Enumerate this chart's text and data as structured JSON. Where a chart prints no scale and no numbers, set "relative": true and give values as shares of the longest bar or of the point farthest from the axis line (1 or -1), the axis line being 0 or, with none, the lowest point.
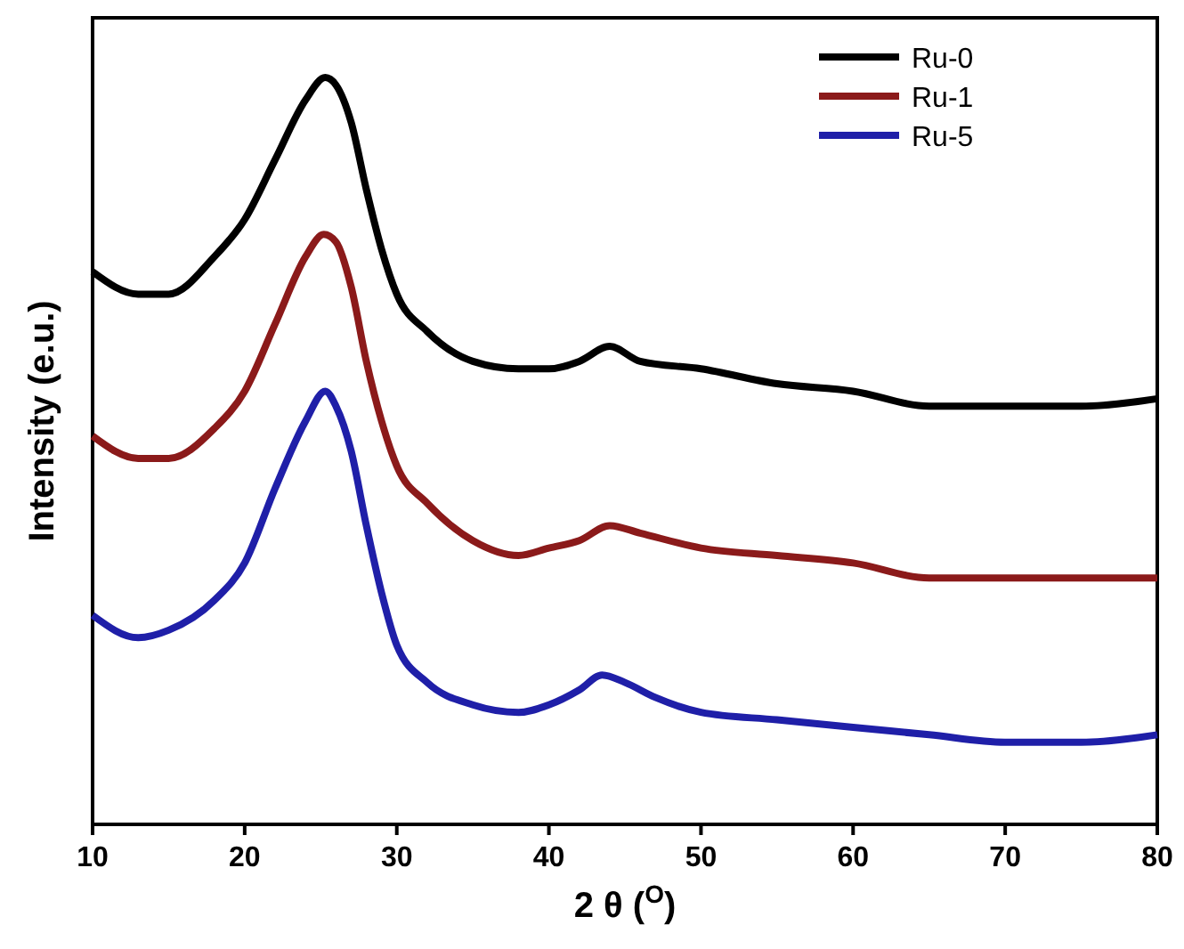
{
  "chart_data": {
    "type": "line",
    "relative": true,
    "xlabel": "2 θ ($^{O}$)",
    "ylabel": "Intensity (e.u.)",
    "xlim": [
      10,
      80
    ],
    "xticks": [
      10,
      20,
      30,
      40,
      50,
      60,
      70,
      80
    ],
    "tick_labels": "x",
    "legend": "top right",
    "line_style": "solid",
    "marker": "none",
    "series": [
      {
        "name": "Ru-0",
        "color": "#000000",
        "x": [
          10,
          13,
          15,
          18,
          20,
          22,
          24,
          25.3,
          26,
          27,
          28,
          29,
          30,
          32,
          35,
          38,
          40,
          42,
          44,
          46,
          50,
          55,
          60,
          65,
          70,
          75,
          80
        ],
        "values": [
          0.74,
          0.71,
          0.71,
          0.76,
          0.81,
          0.89,
          0.97,
          1,
          0.99,
          0.94,
          0.85,
          0.77,
          0.71,
          0.66,
          0.62,
          0.61,
          0.61,
          0.62,
          0.64,
          0.62,
          0.61,
          0.59,
          0.58,
          0.56,
          0.56,
          0.56,
          0.57
        ]
      },
      {
        "name": "Ru-1",
        "color": "#8b1a1a",
        "x": [
          10,
          13,
          15,
          18,
          20,
          22,
          24,
          25.2,
          26,
          27,
          28,
          29,
          30,
          32,
          35,
          38,
          40,
          42,
          44,
          46,
          50,
          55,
          60,
          65,
          70,
          75,
          80
        ],
        "values": [
          0.52,
          0.49,
          0.49,
          0.53,
          0.58,
          0.67,
          0.76,
          0.79,
          0.78,
          0.72,
          0.62,
          0.54,
          0.48,
          0.43,
          0.38,
          0.36,
          0.37,
          0.38,
          0.4,
          0.39,
          0.37,
          0.36,
          0.35,
          0.33,
          0.33,
          0.33,
          0.33
        ]
      },
      {
        "name": "Ru-5",
        "color": "#1f1fa8",
        "x": [
          10,
          13,
          15,
          18,
          20,
          22,
          24,
          25.3,
          26,
          27,
          28,
          29,
          30,
          32,
          35,
          38,
          40,
          42,
          43.5,
          45,
          47,
          50,
          55,
          60,
          65,
          70,
          75,
          80
        ],
        "values": [
          0.28,
          0.25,
          0.26,
          0.3,
          0.35,
          0.45,
          0.54,
          0.58,
          0.56,
          0.5,
          0.4,
          0.31,
          0.24,
          0.19,
          0.16,
          0.15,
          0.16,
          0.18,
          0.2,
          0.19,
          0.17,
          0.15,
          0.14,
          0.13,
          0.12,
          0.11,
          0.11,
          0.12
        ]
      }
    ]
  }
}
